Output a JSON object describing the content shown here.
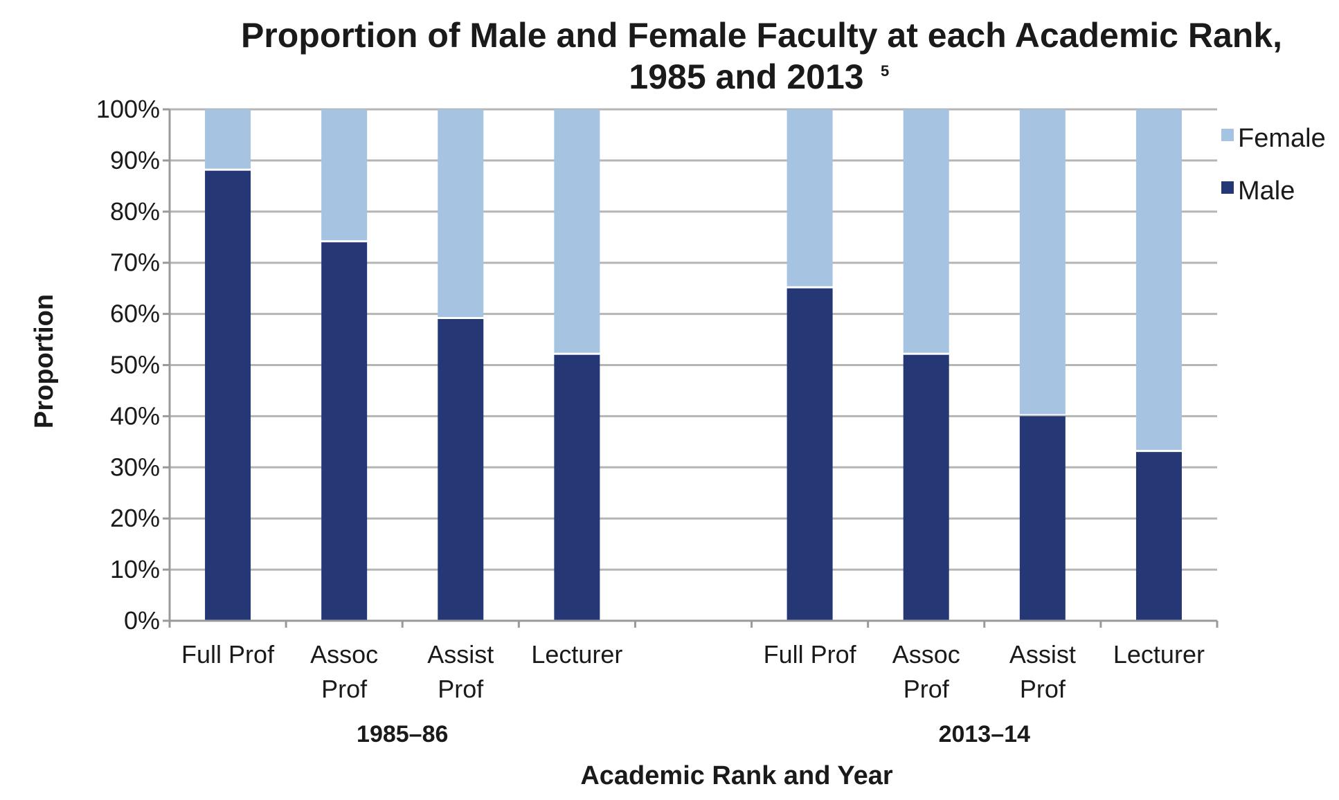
{
  "chart_data": {
    "type": "bar",
    "stacked": true,
    "title_lines": [
      "Proportion of Male and Female Faculty at each Academic Rank,",
      "1985 and 2013"
    ],
    "title_superscript": "5",
    "xlabel": "Academic Rank and Year",
    "ylabel": "Proportion",
    "ylim": [
      0,
      100
    ],
    "y_ticks": [
      0,
      10,
      20,
      30,
      40,
      50,
      60,
      70,
      80,
      90,
      100
    ],
    "y_tick_suffix": "%",
    "grid": true,
    "legend_position": "right",
    "groups": [
      {
        "label": "1985–86",
        "categories": [
          "Full Prof",
          "Assoc Prof",
          "Assist Prof",
          "Lecturer"
        ]
      },
      {
        "label": "2013–14",
        "categories": [
          "Full Prof",
          "Assoc Prof",
          "Assist Prof",
          "Lecturer"
        ]
      }
    ],
    "category_label_lines": {
      "Full Prof": [
        "Full Prof"
      ],
      "Assoc Prof": [
        "Assoc",
        "Prof"
      ],
      "Assist Prof": [
        "Assist",
        "Prof"
      ],
      "Lecturer": [
        "Lecturer"
      ]
    },
    "series": [
      {
        "name": "Male",
        "color": "#263775",
        "values": [
          88,
          74,
          59,
          52,
          65,
          52,
          40,
          33
        ]
      },
      {
        "name": "Female",
        "color": "#a6c3e2",
        "values": [
          12,
          26,
          41,
          48,
          35,
          48,
          60,
          67
        ]
      }
    ],
    "legend_order": [
      "Female",
      "Male"
    ]
  }
}
